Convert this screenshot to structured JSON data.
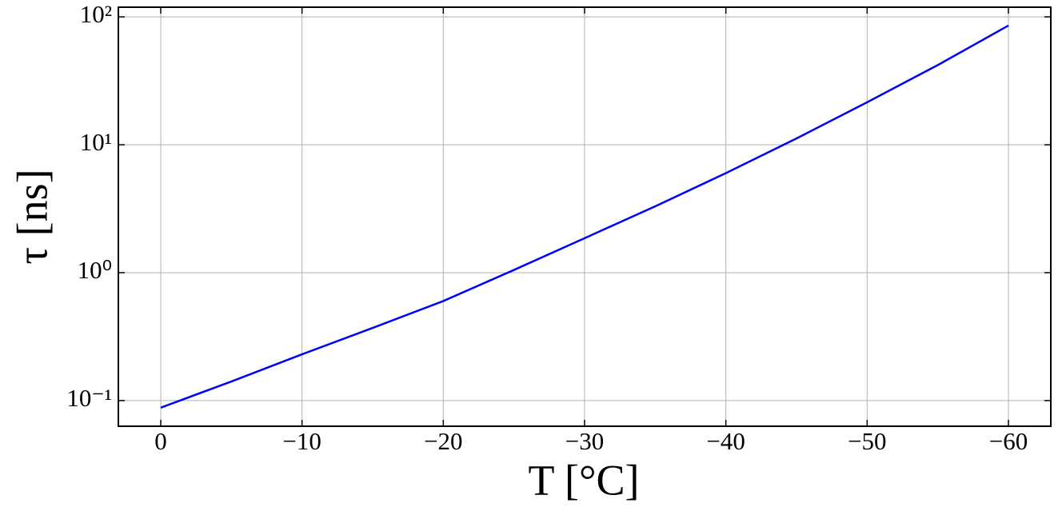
{
  "chart_data": {
    "type": "line",
    "x_label": "T [°C]",
    "y_label": "τ [ns]",
    "x": [
      0,
      -5,
      -10,
      -15,
      -20,
      -25,
      -30,
      -35,
      -40,
      -45,
      -50,
      -55,
      -60
    ],
    "values": [
      0.088,
      0.141,
      0.23,
      0.37,
      0.6,
      1.05,
      1.86,
      3.3,
      6.0,
      11.2,
      21.5,
      42,
      85.5
    ],
    "color": "#0000ff",
    "xlim": [
      3,
      -63
    ],
    "xticks": [
      0,
      {
        "value": -10,
        "label": "−10"
      },
      {
        "value": -20,
        "label": "−20"
      },
      {
        "value": -30,
        "label": "−30"
      },
      {
        "value": -40,
        "label": "−40"
      },
      {
        "value": -50,
        "label": "−50"
      },
      {
        "value": -60,
        "label": "−60"
      }
    ],
    "ylim": [
      0.063,
      119
    ],
    "yticks": [
      {
        "value": 0.1,
        "label": "10⁻¹"
      },
      {
        "value": 1,
        "label": "10⁰"
      },
      {
        "value": 10,
        "label": "10¹"
      },
      {
        "value": 100,
        "label": "10²"
      }
    ],
    "yscale": "log",
    "grid": true
  }
}
